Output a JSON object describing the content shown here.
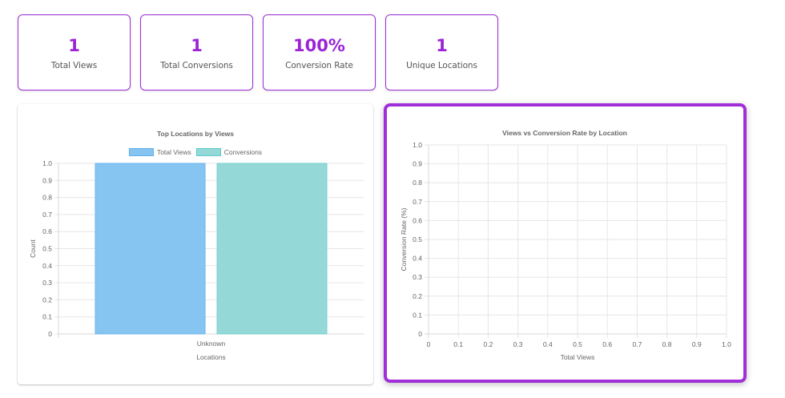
{
  "stats": [
    {
      "value": "1",
      "label": "Total Views"
    },
    {
      "value": "1",
      "label": "Total Conversions"
    },
    {
      "value": "100%",
      "label": "Conversion Rate"
    },
    {
      "value": "1",
      "label": "Unique Locations"
    }
  ],
  "colors": {
    "accent": "#9a24d6",
    "total_views": "#86c4f1",
    "conversions": "#94d9d8"
  },
  "chart_data": [
    {
      "type": "bar",
      "title": "Top Locations by Views",
      "categories": [
        "Unknown"
      ],
      "series": [
        {
          "name": "Total Views",
          "values": [
            1
          ]
        },
        {
          "name": "Conversions",
          "values": [
            1
          ]
        }
      ],
      "xlabel": "Locations",
      "ylabel": "Count",
      "ylim": [
        0,
        1.0
      ],
      "yticks": [
        "0",
        "0.1",
        "0.2",
        "0.3",
        "0.4",
        "0.5",
        "0.6",
        "0.7",
        "0.8",
        "0.9",
        "1.0"
      ],
      "grid": true,
      "legend_position": "top"
    },
    {
      "type": "scatter",
      "title": "Views vs Conversion Rate by Location",
      "series": [],
      "xlabel": "Total Views",
      "ylabel": "Conversion Rate (%)",
      "xlim": [
        0,
        1.0
      ],
      "ylim": [
        0,
        1.0
      ],
      "xticks": [
        "0",
        "0.1",
        "0.2",
        "0.3",
        "0.4",
        "0.5",
        "0.6",
        "0.7",
        "0.8",
        "0.9",
        "1.0"
      ],
      "yticks": [
        "0",
        "0.1",
        "0.2",
        "0.3",
        "0.4",
        "0.5",
        "0.6",
        "0.7",
        "0.8",
        "0.9",
        "1.0"
      ],
      "grid": true
    }
  ]
}
